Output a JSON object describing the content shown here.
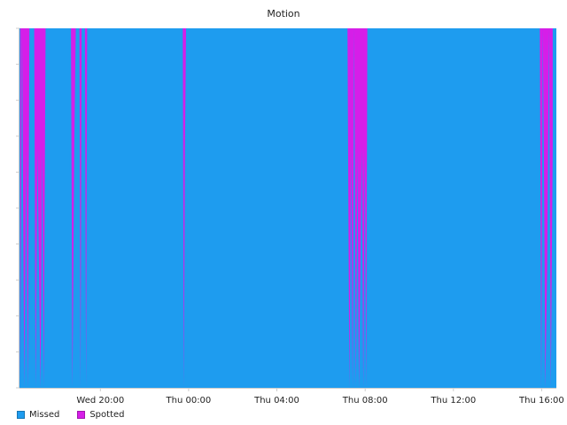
{
  "chart_data": {
    "type": "area",
    "stacked": true,
    "title": "Motion",
    "xlabel": "",
    "ylabel": "",
    "ylim": [
      0,
      1
    ],
    "grid": false,
    "legend_position": "bottom-left",
    "x_range": [
      "Wed 16:20",
      "Thu 16:40"
    ],
    "x_ticks": [
      {
        "label": "Wed 20:00",
        "time": "Wed 20:00"
      },
      {
        "label": "Thu 00:00",
        "time": "Thu 00:00"
      },
      {
        "label": "Thu 04:00",
        "time": "Thu 04:00"
      },
      {
        "label": "Thu 08:00",
        "time": "Thu 08:00"
      },
      {
        "label": "Thu 12:00",
        "time": "Thu 12:00"
      },
      {
        "label": "Thu 16:00",
        "time": "Thu 16:00"
      }
    ],
    "series": [
      {
        "name": "Missed",
        "color": "#1e9cef"
      },
      {
        "name": "Spotted",
        "color": "#d61ee8"
      }
    ],
    "spotted_events": [
      {
        "time": "Wed 16:22",
        "value": 1.0
      },
      {
        "time": "Wed 16:27",
        "value": 0.0
      },
      {
        "time": "Wed 16:33",
        "value": 1.0
      },
      {
        "time": "Wed 16:38",
        "value": 0.33
      },
      {
        "time": "Wed 16:43",
        "value": 1.0
      },
      {
        "time": "Wed 16:47",
        "value": 0.0
      },
      {
        "time": "Wed 17:00",
        "value": 0.0
      },
      {
        "time": "Wed 17:04",
        "value": 1.0
      },
      {
        "time": "Wed 17:09",
        "value": 0.33
      },
      {
        "time": "Wed 17:13",
        "value": 0.67
      },
      {
        "time": "Wed 17:17",
        "value": 1.0
      },
      {
        "time": "Wed 17:22",
        "value": 0.33
      },
      {
        "time": "Wed 17:26",
        "value": 1.0
      },
      {
        "time": "Wed 17:31",
        "value": 0.0
      },
      {
        "time": "Wed 18:40",
        "value": 0.0
      },
      {
        "time": "Wed 18:44",
        "value": 1.0
      },
      {
        "time": "Wed 18:49",
        "value": 0.33
      },
      {
        "time": "Wed 18:53",
        "value": 0.0
      },
      {
        "time": "Wed 19:03",
        "value": 0.0
      },
      {
        "time": "Wed 19:06",
        "value": 1.0
      },
      {
        "time": "Wed 19:09",
        "value": 0.0
      },
      {
        "time": "Wed 19:18",
        "value": 0.0
      },
      {
        "time": "Wed 19:21",
        "value": 1.0
      },
      {
        "time": "Wed 19:24",
        "value": 0.0
      },
      {
        "time": "Wed 23:44",
        "value": 0.0
      },
      {
        "time": "Wed 23:47",
        "value": 1.0
      },
      {
        "time": "Wed 23:50",
        "value": 0.33
      },
      {
        "time": "Wed 23:53",
        "value": 0.0
      },
      {
        "time": "Thu 07:12",
        "value": 0.0
      },
      {
        "time": "Thu 07:17",
        "value": 1.0
      },
      {
        "time": "Thu 07:22",
        "value": 0.33
      },
      {
        "time": "Thu 07:26",
        "value": 1.0
      },
      {
        "time": "Thu 07:30",
        "value": 0.0
      },
      {
        "time": "Thu 07:35",
        "value": 1.0
      },
      {
        "time": "Thu 07:39",
        "value": 0.33
      },
      {
        "time": "Thu 07:43",
        "value": 1.0
      },
      {
        "time": "Thu 07:47",
        "value": 0.67
      },
      {
        "time": "Thu 07:51",
        "value": 0.33
      },
      {
        "time": "Thu 07:55",
        "value": 1.0
      },
      {
        "time": "Thu 07:59",
        "value": 0.33
      },
      {
        "time": "Thu 08:03",
        "value": 1.0
      },
      {
        "time": "Thu 08:06",
        "value": 0.0
      },
      {
        "time": "Thu 15:55",
        "value": 0.0
      },
      {
        "time": "Thu 15:59",
        "value": 1.0
      },
      {
        "time": "Thu 16:03",
        "value": 0.0
      },
      {
        "time": "Thu 16:06",
        "value": 0.33
      },
      {
        "time": "Thu 16:10",
        "value": 1.0
      },
      {
        "time": "Thu 16:15",
        "value": 0.67
      },
      {
        "time": "Thu 16:20",
        "value": 0.0
      },
      {
        "time": "Thu 16:25",
        "value": 1.0
      },
      {
        "time": "Thu 16:30",
        "value": 0.33
      }
    ]
  }
}
